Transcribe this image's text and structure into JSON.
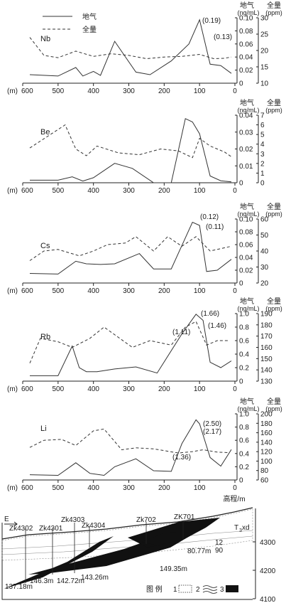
{
  "legend": {
    "gas": "地气",
    "total": "全量"
  },
  "common": {
    "x_unit": "(m)",
    "x_ticks": [
      600,
      500,
      400,
      300,
      200,
      100,
      0
    ],
    "gas_header": "地气",
    "gas_unit": "(ng/mL)",
    "total_header": "全量",
    "total_unit": "(ppm)"
  },
  "chart_data": [
    {
      "type": "line",
      "element": "Nb",
      "xlabel": "(m)",
      "xlim": [
        600,
        0
      ],
      "ylabel_left": "地气 (ng/mL)",
      "ylim_left": [
        0,
        0.1
      ],
      "yticks_left": [
        "0",
        "0.02",
        "0.04",
        "0.06",
        "0.08",
        "0.10"
      ],
      "ylabel_right": "全量 (ppm)",
      "ylim_right": [
        10,
        30
      ],
      "yticks_right": [
        "10",
        "15",
        "20",
        "25",
        "30"
      ],
      "series": [
        {
          "name": "地气",
          "axis": "left",
          "style": "solid",
          "x": [
            580,
            500,
            450,
            430,
            400,
            380,
            340,
            280,
            240,
            180,
            130,
            100,
            70,
            40,
            10
          ],
          "y": [
            0.013,
            0.011,
            0.024,
            0.011,
            0.018,
            0.012,
            0.064,
            0.017,
            0.013,
            0.034,
            0.06,
            0.097,
            0.029,
            0.027,
            0.015
          ]
        },
        {
          "name": "全量",
          "axis": "right",
          "style": "dashed",
          "x": [
            580,
            540,
            500,
            450,
            400,
            350,
            300,
            250,
            200,
            150,
            100,
            60,
            30,
            10
          ],
          "y": [
            24,
            18.5,
            17.8,
            19.8,
            18.2,
            19.0,
            18.5,
            17.5,
            18.0,
            18.2,
            18.8,
            17.5,
            17.6,
            18.0
          ]
        }
      ],
      "annotations": [
        "(0.19)",
        "(0.13)"
      ]
    },
    {
      "type": "line",
      "element": "Be",
      "xlabel": "(m)",
      "xlim": [
        600,
        0
      ],
      "ylabel_left": "地气 (ng/mL)",
      "ylim_left": [
        0,
        0.04
      ],
      "yticks_left": [
        "0",
        "0.01",
        "0.02",
        "0.03",
        "0.04"
      ],
      "ylabel_right": "全量 (ppm)",
      "ylim_right": [
        0,
        7
      ],
      "yticks_right": [
        "0",
        "1",
        "2",
        "3",
        "4",
        "5",
        "6",
        "7"
      ],
      "series": [
        {
          "name": "地气",
          "axis": "left",
          "style": "solid",
          "x": [
            580,
            500,
            460,
            430,
            400,
            340,
            290,
            230,
            180,
            140,
            120,
            100,
            70,
            40,
            10
          ],
          "y": [
            0.0015,
            0.0015,
            0.0035,
            0.001,
            0.003,
            0.0115,
            0.0085,
            0,
            0,
            0.038,
            0.036,
            0.029,
            0.004,
            0.0012,
            0.0005
          ]
        },
        {
          "name": "全量",
          "axis": "right",
          "style": "dashed",
          "x": [
            580,
            480,
            450,
            420,
            390,
            330,
            270,
            210,
            160,
            120,
            100,
            70,
            30,
            10
          ],
          "y": [
            3.6,
            6.0,
            3.5,
            2.8,
            3.8,
            3.1,
            2.9,
            3.5,
            3.3,
            2.6,
            4.6,
            3.8,
            3.2,
            2.7
          ]
        }
      ],
      "annotations": []
    },
    {
      "type": "line",
      "element": "Cs",
      "xlabel": "(m)",
      "xlim": [
        600,
        0
      ],
      "ylabel_left": "地气 (ng/mL)",
      "ylim_left": [
        0,
        0.1
      ],
      "yticks_left": [
        "0",
        "0.02",
        "0.04",
        "0.06",
        "0.08",
        "0.10"
      ],
      "ylabel_right": "全量 (ppm)",
      "ylim_right": [
        20,
        60
      ],
      "yticks_right": [
        "20",
        "30",
        "40",
        "50",
        "60"
      ],
      "series": [
        {
          "name": "地气",
          "axis": "left",
          "style": "solid",
          "x": [
            580,
            500,
            450,
            420,
            380,
            340,
            270,
            230,
            180,
            120,
            100,
            80,
            50,
            10
          ],
          "y": [
            0.015,
            0.014,
            0.034,
            0.03,
            0.029,
            0.03,
            0.046,
            0.022,
            0.022,
            0.095,
            0.09,
            0.018,
            0.02,
            0.037
          ]
        },
        {
          "name": "全量",
          "axis": "right",
          "style": "dashed",
          "x": [
            580,
            540,
            500,
            440,
            400,
            360,
            310,
            280,
            230,
            190,
            150,
            110,
            70,
            30,
            10
          ],
          "y": [
            34,
            40,
            41,
            37,
            40,
            44,
            45,
            49,
            40,
            49,
            43,
            49,
            40,
            42,
            43
          ]
        }
      ],
      "annotations": [
        "(0.12)",
        "(0.11)"
      ]
    },
    {
      "type": "line",
      "element": "Rb",
      "xlabel": "(m)",
      "xlim": [
        600,
        0
      ],
      "ylabel_left": "地气 (ng/mL)",
      "ylim_left": [
        0,
        1.0
      ],
      "yticks_left": [
        "0",
        "0.2",
        "0.4",
        "0.6",
        "0.8",
        "1.0"
      ],
      "ylabel_right": "全量 (ppm)",
      "ylim_right": [
        130,
        190
      ],
      "yticks_right": [
        "130",
        "140",
        "150",
        "160",
        "170",
        "180",
        "190"
      ],
      "series": [
        {
          "name": "地气",
          "axis": "left",
          "style": "solid",
          "x": [
            580,
            500,
            460,
            440,
            420,
            390,
            340,
            280,
            220,
            150,
            110,
            90,
            70,
            40,
            10
          ],
          "y": [
            0.08,
            0.08,
            0.52,
            0.2,
            0.14,
            0.14,
            0.18,
            0.21,
            0.12,
            0.7,
            0.99,
            0.9,
            0.28,
            0.2,
            0.3
          ]
        },
        {
          "name": "全量",
          "axis": "right",
          "style": "dashed",
          "x": [
            580,
            550,
            500,
            460,
            410,
            370,
            290,
            240,
            180,
            140,
            110,
            80,
            50,
            20
          ],
          "y": [
            146,
            168,
            165,
            160,
            168,
            178,
            160,
            166,
            162,
            178,
            183,
            162,
            166,
            166
          ]
        }
      ],
      "annotations": [
        "(1.11)",
        "(1.66)",
        "(1.46)"
      ]
    },
    {
      "type": "line",
      "element": "Li",
      "xlabel": "(m)",
      "xlim": [
        600,
        0
      ],
      "ylabel_left": "地气 (ng/mL)",
      "ylim_left": [
        0,
        1.0
      ],
      "yticks_left": [
        "0",
        "0.2",
        "0.4",
        "0.6",
        "0.8",
        "1.0"
      ],
      "ylabel_right": "全量 (ppm)",
      "ylim_right": [
        60,
        200
      ],
      "yticks_right": [
        "60",
        "80",
        "100",
        "120",
        "140",
        "160",
        "180",
        "200"
      ],
      "series": [
        {
          "name": "地气",
          "axis": "left",
          "style": "solid",
          "x": [
            580,
            500,
            450,
            410,
            370,
            340,
            280,
            230,
            180,
            150,
            110,
            100,
            70,
            40,
            10
          ],
          "y": [
            0.08,
            0.07,
            0.26,
            0.1,
            0.07,
            0.2,
            0.32,
            0.14,
            0.13,
            0.55,
            0.91,
            0.85,
            0.34,
            0.21,
            0.46
          ]
        },
        {
          "name": "全量",
          "axis": "right",
          "style": "dashed",
          "x": [
            580,
            540,
            490,
            450,
            400,
            370,
            320,
            280,
            230,
            160,
            120,
            90,
            50,
            20
          ],
          "y": [
            129,
            144,
            146,
            133,
            164,
            168,
            124,
            128,
            126,
            117,
            120,
            124,
            119,
            118
          ]
        }
      ],
      "annotations": [
        "(1.36)",
        "(2.50)",
        "(2.17)"
      ]
    }
  ],
  "section": {
    "axis_title": "高程/m",
    "elevation_ticks": [
      "4300",
      "4200",
      "4100"
    ],
    "direction": "E",
    "wells": [
      "Zk4302",
      "Zk4301",
      "Zk4303",
      "Zk4304",
      "Zk702",
      "ZK701"
    ],
    "depths": [
      "137.18m",
      "146.3m",
      "142.72m",
      "143.26m",
      "149.35m",
      "80.77m"
    ],
    "labels": [
      "12",
      "90",
      "T",
      "3",
      "xd"
    ],
    "legend_title": "图 例",
    "legend_items": [
      "1",
      "2",
      "3"
    ]
  }
}
